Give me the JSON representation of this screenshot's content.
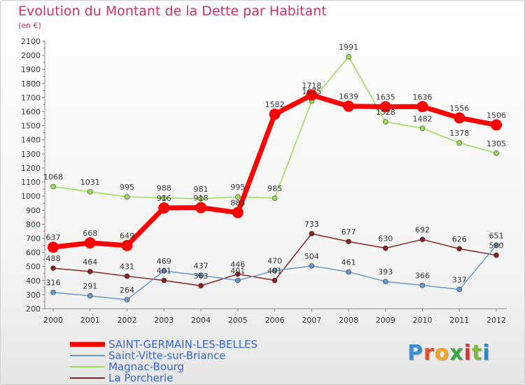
{
  "title": "Evolution du Montant de la Dette par Habitant",
  "subtitle": "(en €)",
  "logo": {
    "text": "Proxiti",
    "letter_colors": [
      "#3a8fd0",
      "#e24b2a",
      "#f2a51c",
      "#3aa640",
      "#d6332c",
      "#7bb83a",
      "#2f83c7"
    ]
  },
  "chart_data": {
    "type": "line",
    "title": "Evolution du Montant de la Dette par Habitant",
    "ylabel": "(en €)",
    "x": [
      "2000",
      "2001",
      "2002",
      "2003",
      "2004",
      "2005",
      "2006",
      "2007",
      "2008",
      "2009",
      "2010",
      "2011",
      "2012"
    ],
    "ylim": [
      200,
      2100
    ],
    "yticks": [
      200,
      300,
      400,
      500,
      600,
      700,
      800,
      900,
      1000,
      1100,
      1200,
      1300,
      1400,
      1500,
      1600,
      1700,
      1800,
      1900,
      2000,
      2100
    ],
    "grid": false,
    "legend": "bottom-left",
    "series": [
      {
        "name": "SAINT-GERMAIN-LES-BELLES",
        "color": "#ff0000",
        "width": 7,
        "marker": 8,
        "values": [
          637,
          668,
          649,
          916,
          918,
          883,
          1582,
          1718,
          1639,
          1635,
          1636,
          1556,
          1506
        ]
      },
      {
        "name": "Saint-Vitte-sur-Briance",
        "color": "#6699cc",
        "width": 1.5,
        "marker": 3.5,
        "values": [
          316,
          291,
          264,
          469,
          437,
          401,
          470,
          504,
          461,
          393,
          366,
          337,
          651
        ]
      },
      {
        "name": "Magnac-Bourg",
        "color": "#99dd55",
        "width": 1.5,
        "marker": 3.5,
        "values": [
          1068,
          1031,
          995,
          988,
          981,
          995,
          985,
          1675,
          1991,
          1528,
          1482,
          1378,
          1305
        ]
      },
      {
        "name": "La Porcherie",
        "color": "#882222",
        "width": 1.5,
        "marker": 3.5,
        "values": [
          488,
          464,
          431,
          401,
          363,
          446,
          401,
          733,
          677,
          630,
          692,
          626,
          580
        ]
      }
    ]
  }
}
